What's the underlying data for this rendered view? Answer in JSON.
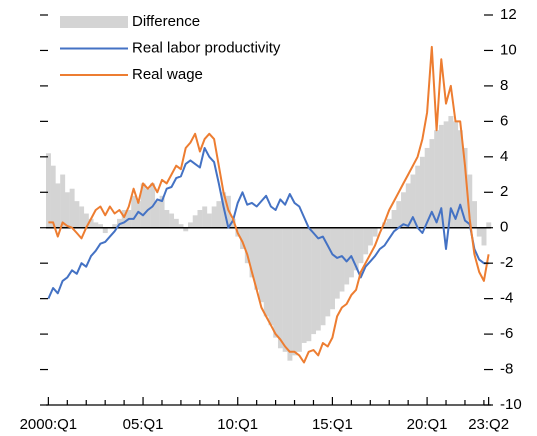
{
  "chart_data": {
    "type": "bar_line",
    "categories": [
      "2000:Q1",
      null,
      null,
      null,
      null,
      null,
      null,
      null,
      null,
      null,
      null,
      null,
      null,
      null,
      null,
      null,
      null,
      null,
      null,
      null,
      "05:Q1",
      null,
      null,
      null,
      null,
      null,
      null,
      null,
      null,
      null,
      null,
      null,
      null,
      null,
      null,
      null,
      null,
      null,
      null,
      null,
      "10:Q1",
      null,
      null,
      null,
      null,
      null,
      null,
      null,
      null,
      null,
      null,
      null,
      null,
      null,
      null,
      null,
      null,
      null,
      null,
      null,
      "15:Q1",
      null,
      null,
      null,
      null,
      null,
      null,
      null,
      null,
      null,
      null,
      null,
      null,
      null,
      null,
      null,
      null,
      null,
      null,
      null,
      "20:Q1",
      null,
      null,
      null,
      null,
      null,
      null,
      null,
      null,
      null,
      null,
      null,
      null,
      "23:Q2"
    ],
    "series": [
      {
        "name": "Difference",
        "kind": "bar",
        "color": "#d4d4d4",
        "values": [
          4.2,
          3.5,
          2.5,
          3.0,
          2.0,
          2.2,
          1.5,
          1.2,
          0.8,
          0.5,
          0.3,
          0.2,
          -0.3,
          0.0,
          0.2,
          0.5,
          1.0,
          1.0,
          1.8,
          1.5,
          2.5,
          2.2,
          2.5,
          1.5,
          1.8,
          1.0,
          0.8,
          0.5,
          0.2,
          -0.2,
          0.3,
          0.7,
          1.0,
          1.2,
          0.8,
          1.2,
          1.5,
          2.0,
          1.8,
          0.5,
          -0.5,
          -1.2,
          -2.0,
          -2.8,
          -3.5,
          -4.2,
          -5.0,
          -5.5,
          -6.2,
          -6.8,
          -7.0,
          -7.5,
          -7.2,
          -7.0,
          -6.5,
          -6.4,
          -6.0,
          -5.8,
          -5.5,
          -5.0,
          -4.6,
          -4.0,
          -3.6,
          -3.2,
          -2.8,
          -2.4,
          -2.0,
          -1.5,
          -1.0,
          -0.5,
          0.0,
          0.3,
          0.5,
          1.0,
          1.5,
          2.0,
          2.5,
          3.0,
          3.5,
          4.0,
          4.5,
          5.0,
          5.5,
          5.8,
          6.0,
          6.3,
          6.0,
          5.5,
          4.5,
          3.0,
          1.5,
          -0.5,
          -1.0,
          0.3
        ]
      },
      {
        "name": "Real labor productivity",
        "kind": "line",
        "color": "#4472c4",
        "values": [
          -4.0,
          -3.4,
          -3.7,
          -3.0,
          -2.8,
          -2.4,
          -2.6,
          -2.0,
          -2.2,
          -1.6,
          -1.3,
          -0.9,
          -0.8,
          -0.5,
          -0.2,
          0.2,
          0.3,
          0.5,
          0.5,
          0.9,
          0.7,
          1.0,
          1.2,
          1.6,
          1.5,
          2.2,
          2.3,
          2.8,
          2.9,
          3.6,
          3.8,
          3.6,
          3.4,
          4.5,
          4.0,
          3.7,
          2.5,
          1.2,
          0.0,
          0.4,
          1.4,
          2.0,
          1.3,
          1.4,
          1.2,
          1.5,
          1.8,
          1.2,
          1.0,
          1.6,
          1.3,
          1.9,
          1.4,
          1.2,
          0.6,
          0.0,
          -0.3,
          -0.6,
          -0.5,
          -1.0,
          -1.5,
          -1.7,
          -1.6,
          -1.9,
          -1.6,
          -2.2,
          -2.8,
          -2.2,
          -1.9,
          -1.6,
          -1.2,
          -1.0,
          -0.6,
          -0.2,
          0.0,
          0.2,
          0.1,
          0.6,
          0.0,
          -0.3,
          0.3,
          0.9,
          0.3,
          1.1,
          -1.2,
          1.1,
          0.5,
          1.3,
          0.4,
          0.2,
          -1.2,
          -1.8,
          -2.0,
          -2.0
        ]
      },
      {
        "name": "Real wage",
        "kind": "line",
        "color": "#ed7d31",
        "values": [
          0.3,
          0.3,
          -0.5,
          0.3,
          0.1,
          0.0,
          -0.3,
          -0.6,
          0.0,
          0.5,
          1.0,
          1.2,
          0.7,
          1.2,
          0.8,
          1.0,
          0.6,
          1.2,
          2.2,
          1.4,
          2.5,
          2.2,
          2.5,
          2.0,
          2.7,
          2.5,
          3.0,
          3.5,
          3.3,
          4.5,
          4.8,
          5.3,
          4.3,
          5.0,
          5.3,
          5.0,
          3.5,
          2.0,
          1.0,
          0.5,
          -0.3,
          -0.8,
          -1.5,
          -2.5,
          -3.5,
          -4.5,
          -5.0,
          -5.5,
          -6.0,
          -6.3,
          -6.7,
          -7.0,
          -7.0,
          -7.2,
          -7.6,
          -7.0,
          -6.9,
          -7.2,
          -6.5,
          -6.7,
          -6.2,
          -5.0,
          -4.5,
          -4.3,
          -3.8,
          -3.5,
          -2.5,
          -2.0,
          -1.5,
          -1.0,
          -0.3,
          0.3,
          1.0,
          1.5,
          2.0,
          2.5,
          3.0,
          3.5,
          4.0,
          5.0,
          6.5,
          10.2,
          5.5,
          9.5,
          7.0,
          8.0,
          6.0,
          6.0,
          3.5,
          0.5,
          -1.5,
          -2.5,
          -3.0,
          -1.5
        ]
      }
    ],
    "ylim": [
      -10,
      12
    ],
    "yticks": [
      12,
      10,
      8,
      6,
      4,
      2,
      0,
      -2,
      -4,
      -6,
      -8,
      -10
    ],
    "legend": "top-left"
  }
}
